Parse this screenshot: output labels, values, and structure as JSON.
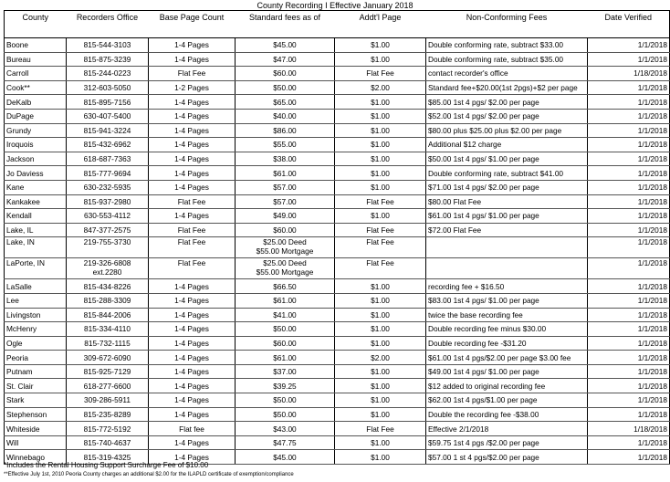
{
  "title": "County Recording I Effective January 2018",
  "headers": [
    "County",
    "Recorders Office",
    "Base Page Count",
    "Standard fees as of",
    "Addt'l Page",
    "Non-Conforming Fees",
    "Date Verified"
  ],
  "rows": [
    [
      "Boone",
      "815-544-3103",
      "1-4 Pages",
      "$45.00",
      "$1.00",
      "Double conforming rate, subtract $33.00",
      "1/1/2018"
    ],
    [
      "Bureau",
      "815-875-3239",
      "1-4 Pages",
      "$47.00",
      "$1.00",
      "Double conforming rate, subtract $35.00",
      "1/1/2018"
    ],
    [
      "Carroll",
      "815-244-0223",
      "Flat Fee",
      "$60.00",
      "Flat Fee",
      "contact recorder's office",
      "1/18/2018"
    ],
    [
      "Cook**",
      "312-603-5050",
      "1-2 Pages",
      "$50.00",
      "$2.00",
      "Standard fee+$20.00(1st 2pgs)+$2 per page",
      "1/1/2018"
    ],
    [
      "DeKalb",
      "815-895-7156",
      "1-4 Pages",
      "$65.00",
      "$1.00",
      "$85.00 1st 4 pgs/ $2.00 per page",
      "1/1/2018"
    ],
    [
      "DuPage",
      "630-407-5400",
      "1-4 Pages",
      "$40.00",
      "$1.00",
      "$52.00 1st 4 pgs/ $2.00 per page",
      "1/1/2018"
    ],
    [
      "Grundy",
      "815-941-3224",
      "1-4 Pages",
      "$86.00",
      "$1.00",
      "$80.00  plus $25.00 plus $2.00 per page",
      "1/1/2018"
    ],
    [
      "Iroquois",
      "815-432-6962",
      "1-4 Pages",
      "$55.00",
      "$1.00",
      "Additional $12 charge",
      "1/1/2018"
    ],
    [
      "Jackson",
      "618-687-7363",
      "1-4 Pages",
      "$38.00",
      "$1.00",
      "$50.00 1st 4 pgs/ $1.00 per page",
      "1/1/2018"
    ],
    [
      "Jo Daviess",
      "815-777-9694",
      "1-4 Pages",
      "$61.00",
      "$1.00",
      "Double conforming rate, subtract $41.00",
      "1/1/2018"
    ],
    [
      "Kane",
      "630-232-5935",
      "1-4 Pages",
      "$57.00",
      "$1.00",
      "$71.00 1st 4 pgs/ $2.00 per page",
      "1/1/2018"
    ],
    [
      "Kankakee",
      "815-937-2980",
      "Flat Fee",
      "$57.00",
      "Flat Fee",
      "$80.00 Flat Fee",
      "1/1/2018"
    ],
    [
      "Kendall",
      "630-553-4112",
      "1-4 Pages",
      "$49.00",
      "$1.00",
      "$61.00 1st 4 pgs/ $1.00 per page",
      "1/1/2018"
    ],
    [
      "Lake, IL",
      "847-377-2575",
      "Flat Fee",
      "$60.00",
      "Flat Fee",
      "$72.00 Flat Fee",
      "1/1/2018"
    ],
    [
      "Lake, IN",
      "219-755-3730",
      "Flat Fee",
      "$25.00 Deed\n$55.00 Mortgage",
      "Flat Fee",
      "",
      "1/1/2018"
    ],
    [
      "LaPorte, IN",
      "219-326-6808\next.2280",
      "Flat Fee",
      "$25.00 Deed\n$55.00 Mortgage",
      "Flat Fee",
      "",
      "1/1/2018"
    ],
    [
      "LaSalle",
      "815-434-8226",
      "1-4 Pages",
      "$66.50",
      "$1.00",
      "recording fee + $16.50",
      "1/1/2018"
    ],
    [
      "Lee",
      "815-288-3309",
      "1-4 Pages",
      "$61.00",
      "$1.00",
      "$83.00 1st 4 pgs/ $1.00 per page",
      "1/1/2018"
    ],
    [
      "Livingston",
      "815-844-2006",
      "1-4 Pages",
      "$41.00",
      "$1.00",
      "twice the base recording fee",
      "1/1/2018"
    ],
    [
      "McHenry",
      "815-334-4110",
      "1-4 Pages",
      "$50.00",
      "$1.00",
      "Double recording fee minus $30.00",
      "1/1/2018"
    ],
    [
      "Ogle",
      "815-732-1115",
      "1-4 Pages",
      "$60.00",
      "$1.00",
      "Double recording fee  -$31.20",
      "1/1/2018"
    ],
    [
      "Peoria",
      "309-672-6090",
      "1-4 Pages",
      "$61.00",
      "$2.00",
      "$61.00 1st 4 pgs/$2.00 per page  $3.00 fee",
      "1/1/2018"
    ],
    [
      "Putnam",
      "815-925-7129",
      "1-4 Pages",
      "$37.00",
      "$1.00",
      "$49.00 1st 4 pgs/ $1.00 per page",
      "1/1/2018"
    ],
    [
      "St. Clair",
      "618-277-6600",
      "1-4 Pages",
      "$39.25",
      "$1.00",
      "$12 added to original recording fee",
      "1/1/2018"
    ],
    [
      "Stark",
      "309-286-5911",
      "1-4 Pages",
      "$50.00",
      "$1.00",
      "$62.00 1st 4 pgs/$1.00 per page",
      "1/1/2018"
    ],
    [
      "Stephenson",
      "815-235-8289",
      "1-4 Pages",
      "$50.00",
      "$1.00",
      "Double the recording fee -$38.00",
      "1/1/2018"
    ],
    [
      "Whiteside",
      "815-772-5192",
      "Flat fee",
      "$43.00",
      "Flat Fee",
      "Effective 2/1/2018",
      "1/18/2018"
    ],
    [
      "Will",
      "815-740-4637",
      "1-4 Pages",
      "$47.75",
      "$1.00",
      "$59.75 1st 4 pgs /$2.00 per page",
      "1/1/2018"
    ],
    [
      "Winnebago",
      "815-319-4325",
      "1-4 Pages",
      "$45.00",
      "$1.00",
      "$57.00 1 st 4 pgs/$2.00 per page",
      "1/1/2018"
    ]
  ],
  "footnotes": [
    "*Includes the Rental Housing Support Surcharge Fee of $10.00",
    "**Effective July 1st, 2010 Peoria County charges an additional $2.00 for the ILAPLD certificate of exemption/compliance"
  ]
}
